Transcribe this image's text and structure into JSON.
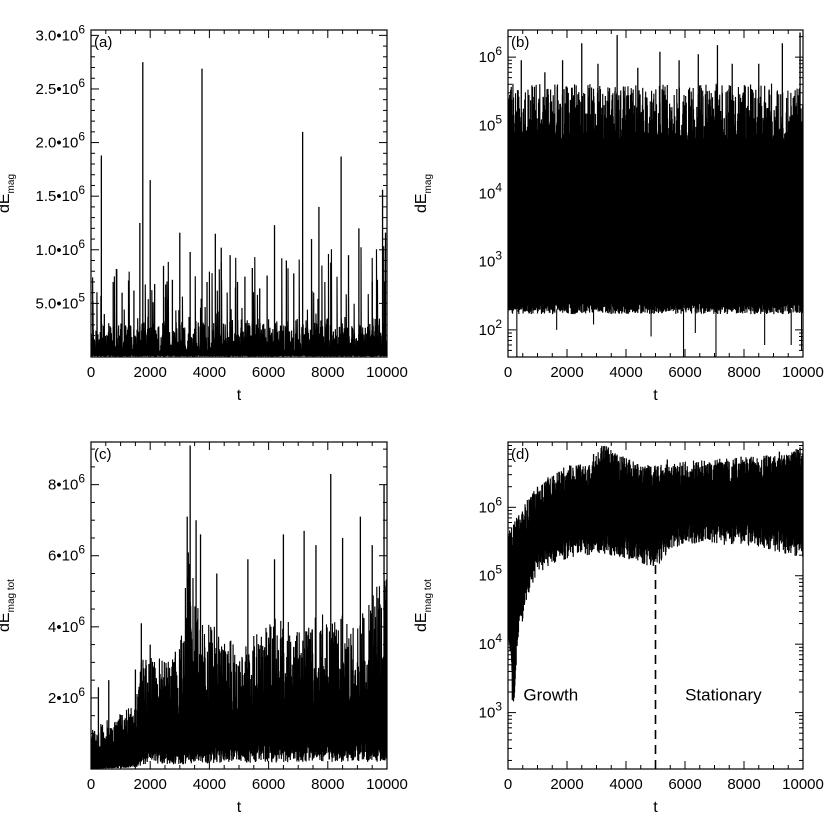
{
  "figure": {
    "background": "#ffffff",
    "ink": "#000000"
  },
  "chart_data": [
    {
      "id": "a",
      "type": "line",
      "panel_label": "(a)",
      "xlabel": "t",
      "ylabel": {
        "base": "dE",
        "sub": "mag"
      },
      "xscale": "linear",
      "yscale": "linear",
      "xlim": [
        0,
        10000
      ],
      "ylim": [
        0,
        3050000
      ],
      "xticks": [
        {
          "value": 0,
          "label": "0"
        },
        {
          "value": 2000,
          "label": "2000"
        },
        {
          "value": 4000,
          "label": "4000"
        },
        {
          "value": 6000,
          "label": "6000"
        },
        {
          "value": 8000,
          "label": "8000"
        },
        {
          "value": 10000,
          "label": "10000"
        }
      ],
      "yticks": [
        {
          "value": 500000,
          "mant": "5.0",
          "exp": "5"
        },
        {
          "value": 1000000,
          "mant": "1.0",
          "exp": "6"
        },
        {
          "value": 1500000,
          "mant": "1.5",
          "exp": "6"
        },
        {
          "value": 2000000,
          "mant": "2.0",
          "exp": "6"
        },
        {
          "value": 2500000,
          "mant": "2.5",
          "exp": "6"
        },
        {
          "value": 3000000,
          "mant": "3.0",
          "exp": "6"
        }
      ],
      "series": [
        {
          "x_range": [
            0,
            10000
          ],
          "baseline": 120000,
          "floor": 10000,
          "peaks": [
            [
              350,
              1880000
            ],
            [
              450,
              400000
            ],
            [
              750,
              700000
            ],
            [
              870,
              820000
            ],
            [
              1050,
              600000
            ],
            [
              1450,
              620000
            ],
            [
              1650,
              1250000
            ],
            [
              1750,
              2750000
            ],
            [
              2000,
              1650000
            ],
            [
              2150,
              680000
            ],
            [
              2450,
              850000
            ],
            [
              2750,
              720000
            ],
            [
              3000,
              1160000
            ],
            [
              3350,
              980000
            ],
            [
              3750,
              2690000
            ],
            [
              3920,
              700000
            ],
            [
              4200,
              1150000
            ],
            [
              4400,
              1020000
            ],
            [
              4700,
              950000
            ],
            [
              4950,
              700000
            ],
            [
              5200,
              750000
            ],
            [
              5450,
              830000
            ],
            [
              5700,
              640000
            ],
            [
              5950,
              760000
            ],
            [
              6200,
              1230000
            ],
            [
              6600,
              900000
            ],
            [
              6850,
              780000
            ],
            [
              7150,
              2100000
            ],
            [
              7450,
              1100000
            ],
            [
              7700,
              1400000
            ],
            [
              8100,
              880000
            ],
            [
              8450,
              1870000
            ],
            [
              8700,
              950000
            ],
            [
              9050,
              1200000
            ],
            [
              9500,
              700000
            ],
            [
              9850,
              1560000
            ],
            [
              9950,
              1160000
            ]
          ],
          "level": [
            [
              0,
              120000
            ],
            [
              10000,
              150000
            ]
          ]
        }
      ]
    },
    {
      "id": "b",
      "type": "line",
      "panel_label": "(b)",
      "xlabel": "t",
      "ylabel": {
        "base": "dE",
        "sub": "mag"
      },
      "xscale": "linear",
      "yscale": "log",
      "xlim": [
        0,
        10000
      ],
      "ylim": [
        40,
        2500000
      ],
      "xticks": [
        {
          "value": 0,
          "label": "0"
        },
        {
          "value": 2000,
          "label": "2000"
        },
        {
          "value": 4000,
          "label": "4000"
        },
        {
          "value": 6000,
          "label": "6000"
        },
        {
          "value": 8000,
          "label": "8000"
        },
        {
          "value": 10000,
          "label": "10000"
        }
      ],
      "yticks": [
        {
          "value": 100,
          "mant": "10",
          "exp": "2"
        },
        {
          "value": 1000,
          "mant": "10",
          "exp": "3"
        },
        {
          "value": 10000,
          "mant": "10",
          "exp": "4"
        },
        {
          "value": 100000,
          "mant": "10",
          "exp": "5"
        },
        {
          "value": 1000000,
          "mant": "10",
          "exp": "6"
        }
      ],
      "series": [
        {
          "x_range": [
            0,
            10000
          ],
          "band_low": 200,
          "band_high": 100000,
          "floor": 50,
          "peaks": [
            [
              200,
              120000
            ],
            [
              450,
              900000
            ],
            [
              1250,
              600000
            ],
            [
              1850,
              900000
            ],
            [
              2500,
              1600000
            ],
            [
              3050,
              800000
            ],
            [
              3700,
              2100000
            ],
            [
              4400,
              700000
            ],
            [
              5150,
              1200000
            ],
            [
              5800,
              900000
            ],
            [
              6450,
              1100000
            ],
            [
              7100,
              1500000
            ],
            [
              7600,
              800000
            ],
            [
              8500,
              800000
            ],
            [
              9300,
              1600000
            ],
            [
              9900,
              2300000
            ]
          ],
          "dips": [
            [
              300,
              40
            ],
            [
              1650,
              100
            ],
            [
              2900,
              120
            ],
            [
              4850,
              80
            ],
            [
              5950,
              40
            ],
            [
              6350,
              90
            ],
            [
              7050,
              40
            ],
            [
              8700,
              60
            ],
            [
              9600,
              60
            ],
            [
              9950,
              50
            ]
          ]
        }
      ]
    },
    {
      "id": "c",
      "type": "line",
      "panel_label": "(c)",
      "xlabel": "t",
      "ylabel": {
        "base": "dE",
        "sub": "mag tot"
      },
      "xscale": "linear",
      "yscale": "linear",
      "xlim": [
        0,
        10000
      ],
      "ylim": [
        0,
        9200000
      ],
      "xticks": [
        {
          "value": 0,
          "label": "0"
        },
        {
          "value": 2000,
          "label": "2000"
        },
        {
          "value": 4000,
          "label": "4000"
        },
        {
          "value": 6000,
          "label": "6000"
        },
        {
          "value": 8000,
          "label": "8000"
        },
        {
          "value": 10000,
          "label": "10000"
        }
      ],
      "yticks": [
        {
          "value": 2000000,
          "mant": "2",
          "exp": "6"
        },
        {
          "value": 4000000,
          "mant": "4",
          "exp": "6"
        },
        {
          "value": 6000000,
          "mant": "6",
          "exp": "6"
        },
        {
          "value": 8000000,
          "mant": "8",
          "exp": "6"
        }
      ],
      "series": [
        {
          "x_range": [
            0,
            10000
          ],
          "low_env": [
            [
              0,
              0
            ],
            [
              1500,
              100000
            ],
            [
              2000,
              400000
            ],
            [
              3000,
              300000
            ],
            [
              4000,
              400000
            ],
            [
              6000,
              450000
            ],
            [
              8000,
              500000
            ],
            [
              10000,
              450000
            ]
          ],
          "high_env": [
            [
              0,
              1000000
            ],
            [
              1500,
              1600000
            ],
            [
              1700,
              2700000
            ],
            [
              3000,
              3000000
            ],
            [
              3300,
              5500000
            ],
            [
              3600,
              4000000
            ],
            [
              5000,
              3000000
            ],
            [
              6000,
              3800000
            ],
            [
              7000,
              3600000
            ],
            [
              8000,
              4000000
            ],
            [
              9000,
              3700000
            ],
            [
              10000,
              5000000
            ]
          ],
          "peaks": [
            [
              250,
              2300000
            ],
            [
              600,
              2500000
            ],
            [
              1500,
              2800000
            ],
            [
              1700,
              4100000
            ],
            [
              2000,
              3500000
            ],
            [
              2450,
              2300000
            ],
            [
              2850,
              3300000
            ],
            [
              3250,
              7100000
            ],
            [
              3350,
              9100000
            ],
            [
              3550,
              7000000
            ],
            [
              3700,
              6600000
            ],
            [
              4250,
              5500000
            ],
            [
              5300,
              5900000
            ],
            [
              6200,
              5900000
            ],
            [
              6500,
              6600000
            ],
            [
              7200,
              6700000
            ],
            [
              7600,
              6300000
            ],
            [
              8100,
              8300000
            ],
            [
              8500,
              6500000
            ],
            [
              9100,
              7100000
            ],
            [
              9500,
              6300000
            ],
            [
              9900,
              8000000
            ]
          ]
        }
      ]
    },
    {
      "id": "d",
      "type": "line",
      "panel_label": "(d)",
      "xlabel": "t",
      "ylabel": {
        "base": "dE",
        "sub": "mag tot"
      },
      "xscale": "linear",
      "yscale": "log",
      "xlim": [
        0,
        10000
      ],
      "ylim": [
        150,
        9000000
      ],
      "xticks": [
        {
          "value": 0,
          "label": "0"
        },
        {
          "value": 2000,
          "label": "2000"
        },
        {
          "value": 4000,
          "label": "4000"
        },
        {
          "value": 6000,
          "label": "6000"
        },
        {
          "value": 8000,
          "label": "8000"
        },
        {
          "value": 10000,
          "label": "10000"
        }
      ],
      "yticks": [
        {
          "value": 1000,
          "mant": "10",
          "exp": "3"
        },
        {
          "value": 10000,
          "mant": "10",
          "exp": "4"
        },
        {
          "value": 100000,
          "mant": "10",
          "exp": "5"
        },
        {
          "value": 1000000,
          "mant": "10",
          "exp": "6"
        }
      ],
      "annotations": [
        {
          "text": "Growth",
          "x": 1450,
          "y": 1500
        },
        {
          "text": "Stationary",
          "x": 7300,
          "y": 1500
        }
      ],
      "vline": {
        "x": 5000,
        "style": "dashed"
      },
      "series": [
        {
          "x_range": [
            0,
            10000
          ],
          "low_env": [
            [
              0,
              15000
            ],
            [
              150,
              1300
            ],
            [
              250,
              3000
            ],
            [
              500,
              30000
            ],
            [
              1000,
              150000
            ],
            [
              2000,
              250000
            ],
            [
              3000,
              300000
            ],
            [
              4000,
              250000
            ],
            [
              5000,
              180000
            ],
            [
              6000,
              400000
            ],
            [
              8000,
              400000
            ],
            [
              10000,
              250000
            ]
          ],
          "high_env": [
            [
              0,
              300000
            ],
            [
              500,
              700000
            ],
            [
              1000,
              1500000
            ],
            [
              2000,
              3000000
            ],
            [
              2900,
              3500000
            ],
            [
              3300,
              7000000
            ],
            [
              3500,
              5000000
            ],
            [
              4500,
              3000000
            ],
            [
              6000,
              3500000
            ],
            [
              8000,
              4000000
            ],
            [
              9500,
              4500000
            ],
            [
              10000,
              6000000
            ]
          ],
          "peaks": [
            [
              1000,
              2000000
            ],
            [
              2900,
              6000000
            ],
            [
              3400,
              7500000
            ],
            [
              5400,
              5000000
            ],
            [
              6600,
              4000000
            ],
            [
              7900,
              5500000
            ],
            [
              9200,
              6500000
            ],
            [
              9900,
              7500000
            ]
          ]
        }
      ]
    }
  ]
}
